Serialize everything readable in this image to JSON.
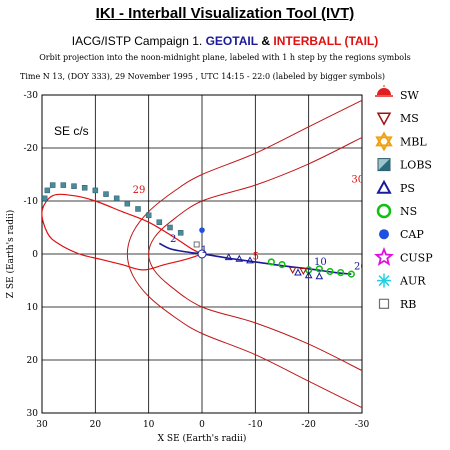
{
  "header": {
    "title": "IKI - Interball Visualization Tool (IVT)",
    "campaign_prefix": "IACG/ISTP Campaign 1.",
    "campaign_geotail": "GEOTAIL",
    "campaign_amp": "&",
    "campaign_interball": "INTERBALL (TAIL)",
    "subtitle": "Orbit projection into the noon-midnight plane, labeled with 1 h step by the regions symbols",
    "time_line": "Time N 13, (DOY 333), 29 November 1995 ,  UTC 14:15 - 22:0 (labeled by bigger symbols)"
  },
  "colors": {
    "geotail": "#1a1a9a",
    "interball": "#e01010",
    "lobs": "#4a8a9a",
    "ns": "#10c010",
    "cap": "#2050e0",
    "cusp": "#e010e0",
    "aur": "#20d0e0",
    "mbl": "#f0a010",
    "ms": "#a01010",
    "rb": "#707070"
  },
  "legend": [
    {
      "label": "SW",
      "icon": "sun-icon"
    },
    {
      "label": "MS",
      "icon": "down-triangle-icon"
    },
    {
      "label": "MBL",
      "icon": "star-of-david-icon"
    },
    {
      "label": "LOBS",
      "icon": "lobs-square-icon"
    },
    {
      "label": "PS",
      "icon": "triangle-icon"
    },
    {
      "label": "NS",
      "icon": "circle-icon"
    },
    {
      "label": "CAP",
      "icon": "filled-hexagon-icon"
    },
    {
      "label": "CUSP",
      "icon": "star-icon"
    },
    {
      "label": "AUR",
      "icon": "asterisk-icon"
    },
    {
      "label": "RB",
      "icon": "square-icon"
    }
  ],
  "chart_data": {
    "type": "line",
    "panel_label": "SE c/s",
    "xlabel": "X SE (Earth's radii)",
    "ylabel": "Z SE (Earth's radii)",
    "xlim": [
      30,
      -30
    ],
    "ylim": [
      30,
      -30
    ],
    "x_ticks": [
      30,
      20,
      10,
      0,
      -10,
      -20,
      -30
    ],
    "x_tick_labels": [
      "30",
      "20",
      "10",
      "0",
      "-10",
      "-20",
      "-30"
    ],
    "y_ticks": [
      -30,
      -20,
      -10,
      0,
      10,
      20,
      30
    ],
    "y_tick_labels": [
      "-30",
      "-20",
      "-10",
      "0",
      "10",
      "20",
      "30"
    ],
    "grid": true,
    "boundaries": [
      {
        "name": "",
        "points": [
          [
            -30,
            -29
          ],
          [
            -20,
            -24
          ],
          [
            -10,
            -19
          ],
          [
            0,
            -15
          ],
          [
            5,
            -12
          ],
          [
            10,
            -8
          ],
          [
            13,
            -4
          ],
          [
            14,
            0
          ],
          [
            13,
            4
          ],
          [
            10,
            8
          ],
          [
            5,
            12
          ],
          [
            0,
            15
          ],
          [
            -10,
            19
          ],
          [
            -20,
            24
          ],
          [
            -30,
            29
          ]
        ]
      },
      {
        "name": "",
        "points": [
          [
            -30,
            -22
          ],
          [
            -20,
            -17
          ],
          [
            -10,
            -13
          ],
          [
            0,
            -10
          ],
          [
            6,
            -6
          ],
          [
            9,
            -3
          ],
          [
            10,
            0
          ],
          [
            9,
            3
          ],
          [
            6,
            6
          ],
          [
            0,
            10
          ],
          [
            -10,
            13
          ],
          [
            -20,
            17
          ],
          [
            -30,
            22
          ]
        ]
      }
    ],
    "interball_orbit": [
      [
        0,
        0
      ],
      [
        2,
        -1
      ],
      [
        5,
        -3
      ],
      [
        10,
        -6
      ],
      [
        15,
        -8
      ],
      [
        20,
        -10
      ],
      [
        24,
        -11
      ],
      [
        28,
        -11
      ],
      [
        30,
        -8
      ],
      [
        29,
        -4
      ],
      [
        27,
        -2
      ],
      [
        23,
        0
      ],
      [
        19,
        1
      ],
      [
        15,
        2
      ],
      [
        11,
        3
      ],
      [
        7,
        2
      ],
      [
        3,
        1
      ],
      [
        0,
        0
      ]
    ],
    "interball_labels": [
      {
        "text": "29",
        "x": 13,
        "y": -11.5
      },
      {
        "text": "30",
        "x": -28,
        "y": -13.5
      },
      {
        "text": "5",
        "x": -9.5,
        "y": 1
      }
    ],
    "geotail_orbit": [
      [
        8,
        -2
      ],
      [
        6,
        -1
      ],
      [
        3,
        -0.4
      ],
      [
        0,
        0
      ],
      [
        -2,
        0.3
      ],
      [
        -5,
        0.8
      ],
      [
        -10,
        1.5
      ],
      [
        -15,
        2.2
      ],
      [
        -20,
        2.8
      ],
      [
        -25,
        3.5
      ],
      [
        -28,
        3.8
      ]
    ],
    "geotail_labels": [
      {
        "text": "2",
        "x": 6,
        "y": -2.3
      },
      {
        "text": "1",
        "x": 0.2,
        "y": -0.2
      },
      {
        "text": "10",
        "x": -21,
        "y": 2.1
      },
      {
        "text": "20",
        "x": -28.5,
        "y": 2.9
      }
    ],
    "lobs_points": [
      [
        4,
        -4
      ],
      [
        6,
        -5
      ],
      [
        8,
        -6
      ],
      [
        10,
        -7.3
      ],
      [
        12,
        -8.5
      ],
      [
        14,
        -9.5
      ],
      [
        16,
        -10.5
      ],
      [
        18,
        -11.3
      ],
      [
        20,
        -12
      ],
      [
        22,
        -12.5
      ],
      [
        24,
        -12.8
      ],
      [
        26,
        -13
      ],
      [
        28,
        -13
      ],
      [
        29,
        -12
      ],
      [
        29.5,
        -10.5
      ]
    ],
    "ns_points": [
      [
        -13,
        1.5
      ],
      [
        -15,
        2
      ],
      [
        -20,
        3
      ],
      [
        -22,
        2.8
      ],
      [
        -24,
        3.3
      ],
      [
        -26,
        3.5
      ],
      [
        -28,
        3.8
      ]
    ],
    "ps_points": [
      [
        -5,
        0.6
      ],
      [
        -7,
        0.9
      ],
      [
        -9,
        1.2
      ],
      [
        -18,
        3.5
      ],
      [
        -20,
        4
      ],
      [
        -22,
        4.2
      ]
    ],
    "ms_points": [
      [
        -17,
        3
      ],
      [
        -19,
        3.2
      ]
    ],
    "cap_points": [
      [
        0,
        -4.5
      ]
    ],
    "rb_points": [
      [
        1,
        -1.8
      ]
    ]
  }
}
